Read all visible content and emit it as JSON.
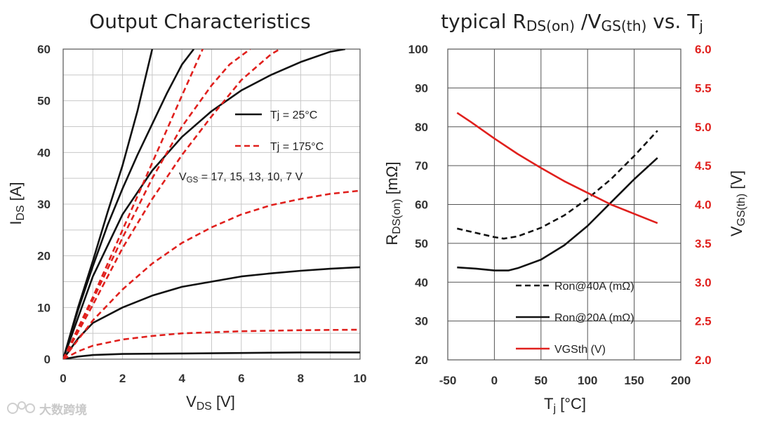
{
  "watermark": {
    "text": "大数跨境"
  },
  "chart_data": [
    {
      "type": "line",
      "title": "Output Characteristics",
      "xlabel_main": "V",
      "xlabel_sub": "DS",
      "xlabel_unit": " [V]",
      "ylabel_main": "I",
      "ylabel_sub": "DS",
      "ylabel_unit": " [A]",
      "xlim": [
        0,
        10
      ],
      "ylim": [
        0,
        60
      ],
      "xticks": [
        0,
        2,
        4,
        6,
        8,
        10
      ],
      "yticks": [
        0,
        10,
        20,
        30,
        40,
        50,
        60
      ],
      "grid": true,
      "legend": [
        {
          "label": "Tj = 25°C",
          "color": "#111111",
          "dash": false
        },
        {
          "label": "Tj = 175°C",
          "color": "#e0201d",
          "dash": true
        }
      ],
      "annotation": {
        "main": "V",
        "sub": "GS",
        "rest": " = 17, 15, 13, 10, 7 V"
      },
      "series": [
        {
          "name": "Tj=25°C VGS=17V",
          "color": "#111111",
          "dash": false,
          "points": [
            [
              0,
              0
            ],
            [
              0.5,
              10
            ],
            [
              1,
              19
            ],
            [
              1.5,
              28.5
            ],
            [
              2,
              37.5
            ],
            [
              2.5,
              48
            ],
            [
              3,
              60
            ]
          ]
        },
        {
          "name": "Tj=25°C VGS=15V",
          "color": "#111111",
          "dash": false,
          "points": [
            [
              0,
              0
            ],
            [
              0.5,
              9.5
            ],
            [
              1,
              18
            ],
            [
              1.5,
              26
            ],
            [
              2,
              33
            ],
            [
              2.5,
              39.5
            ],
            [
              3,
              45.5
            ],
            [
              3.5,
              51.5
            ],
            [
              4,
              57
            ],
            [
              4.4,
              60
            ]
          ]
        },
        {
          "name": "Tj=25°C VGS=13V",
          "color": "#111111",
          "dash": false,
          "points": [
            [
              0,
              0
            ],
            [
              1,
              16
            ],
            [
              2,
              28
            ],
            [
              3,
              36.5
            ],
            [
              4,
              43
            ],
            [
              5,
              48
            ],
            [
              6,
              52
            ],
            [
              7,
              55
            ],
            [
              8,
              57.5
            ],
            [
              9,
              59.5
            ],
            [
              9.5,
              60
            ]
          ]
        },
        {
          "name": "Tj=25°C VGS=10V",
          "color": "#111111",
          "dash": false,
          "points": [
            [
              0,
              0
            ],
            [
              0.5,
              4
            ],
            [
              1,
              7
            ],
            [
              2,
              10
            ],
            [
              3,
              12.3
            ],
            [
              4,
              14
            ],
            [
              5,
              15
            ],
            [
              6,
              16
            ],
            [
              7,
              16.6
            ],
            [
              8,
              17.1
            ],
            [
              9,
              17.5
            ],
            [
              10,
              17.8
            ]
          ]
        },
        {
          "name": "Tj=25°C VGS=7V",
          "color": "#111111",
          "dash": false,
          "points": [
            [
              0,
              0
            ],
            [
              0.5,
              0.5
            ],
            [
              1,
              0.8
            ],
            [
              2,
              1
            ],
            [
              4,
              1.1
            ],
            [
              6,
              1.2
            ],
            [
              8,
              1.3
            ],
            [
              10,
              1.3
            ]
          ]
        },
        {
          "name": "Tj=175°C VGS=17V",
          "color": "#e0201d",
          "dash": true,
          "points": [
            [
              0,
              0
            ],
            [
              1,
              12
            ],
            [
              2,
              25
            ],
            [
              3,
              38
            ],
            [
              4,
              51
            ],
            [
              4.7,
              60
            ]
          ]
        },
        {
          "name": "Tj=175°C VGS=15V",
          "color": "#e0201d",
          "dash": true,
          "points": [
            [
              0,
              0
            ],
            [
              1,
              11.5
            ],
            [
              2,
              23.5
            ],
            [
              3,
              35
            ],
            [
              4,
              45
            ],
            [
              5,
              53
            ],
            [
              5.6,
              57
            ],
            [
              6.3,
              60
            ]
          ]
        },
        {
          "name": "Tj=175°C VGS=13V",
          "color": "#e0201d",
          "dash": true,
          "points": [
            [
              0,
              0
            ],
            [
              1,
              10.5
            ],
            [
              2,
              21.5
            ],
            [
              3,
              31
            ],
            [
              4,
              39.5
            ],
            [
              5,
              47
            ],
            [
              6,
              54
            ],
            [
              7,
              59
            ],
            [
              7.3,
              60
            ]
          ]
        },
        {
          "name": "Tj=175°C VGS=10V",
          "color": "#e0201d",
          "dash": true,
          "points": [
            [
              0,
              0
            ],
            [
              1,
              7.5
            ],
            [
              2,
              13.5
            ],
            [
              3,
              18.5
            ],
            [
              4,
              22.5
            ],
            [
              5,
              25.5
            ],
            [
              6,
              28
            ],
            [
              7,
              29.8
            ],
            [
              8,
              31
            ],
            [
              9,
              32
            ],
            [
              10,
              32.6
            ]
          ]
        },
        {
          "name": "Tj=175°C VGS=7V",
          "color": "#e0201d",
          "dash": true,
          "points": [
            [
              0,
              0
            ],
            [
              0.5,
              1.5
            ],
            [
              1,
              2.6
            ],
            [
              2,
              3.8
            ],
            [
              3,
              4.5
            ],
            [
              4,
              5
            ],
            [
              5,
              5.2
            ],
            [
              6,
              5.4
            ],
            [
              8,
              5.6
            ],
            [
              10,
              5.7
            ]
          ]
        }
      ]
    },
    {
      "type": "line",
      "title_parts": {
        "pre": "typical R",
        "sub1": "DS(on)",
        "mid": " /V",
        "sub2": "GS(th)",
        "post": " vs. T",
        "sub3": "j"
      },
      "xlabel_main": "T",
      "xlabel_sub": "j",
      "xlabel_unit": " [°C]",
      "ylabel_main": "R",
      "ylabel_sub": "DS(on)",
      "ylabel_unit": " [mΩ]",
      "y2label_main": "V",
      "y2label_sub": "GS(th)",
      "y2label_unit": " [V]",
      "xlim": [
        -50,
        200
      ],
      "ylim": [
        20,
        100
      ],
      "y2lim": [
        2.0,
        6.0
      ],
      "xticks": [
        -50,
        0,
        50,
        100,
        150,
        200
      ],
      "yticks": [
        20,
        30,
        40,
        50,
        60,
        70,
        80,
        90,
        100
      ],
      "y2ticks": [
        "2.0",
        "2.5",
        "3.0",
        "3.5",
        "4.0",
        "4.5",
        "5.0",
        "5.5",
        "6.0"
      ],
      "grid": true,
      "legend": [
        {
          "label": "Ron@40A (mΩ)",
          "color": "#111111",
          "dash": true
        },
        {
          "label": "Ron@20A (mΩ)",
          "color": "#111111",
          "dash": false
        },
        {
          "label": "VGSth (V)",
          "color": "#e0201d",
          "dash": false
        }
      ],
      "series": [
        {
          "name": "Ron@40A (mΩ)",
          "axis": "left",
          "color": "#111111",
          "dash": true,
          "points": [
            [
              -40,
              53.8
            ],
            [
              -20,
              52.7
            ],
            [
              0,
              51.6
            ],
            [
              10,
              51.2
            ],
            [
              25,
              51.8
            ],
            [
              50,
              54
            ],
            [
              75,
              57.2
            ],
            [
              100,
              61.5
            ],
            [
              125,
              66.5
            ],
            [
              150,
              72.5
            ],
            [
              175,
              79
            ]
          ]
        },
        {
          "name": "Ron@20A (mΩ)",
          "axis": "left",
          "color": "#111111",
          "dash": false,
          "points": [
            [
              -40,
              43.8
            ],
            [
              -20,
              43.5
            ],
            [
              0,
              43
            ],
            [
              15,
              43
            ],
            [
              25,
              43.6
            ],
            [
              50,
              45.8
            ],
            [
              75,
              49.5
            ],
            [
              100,
              54.5
            ],
            [
              125,
              60.5
            ],
            [
              150,
              66.5
            ],
            [
              175,
              72
            ]
          ]
        },
        {
          "name": "VGSth (V)",
          "axis": "right",
          "color": "#e0201d",
          "dash": false,
          "points": [
            [
              -40,
              5.18
            ],
            [
              -25,
              5.06
            ],
            [
              0,
              4.85
            ],
            [
              25,
              4.65
            ],
            [
              50,
              4.47
            ],
            [
              75,
              4.3
            ],
            [
              100,
              4.15
            ],
            [
              125,
              4.0
            ],
            [
              150,
              3.88
            ],
            [
              175,
              3.76
            ]
          ]
        }
      ]
    }
  ]
}
